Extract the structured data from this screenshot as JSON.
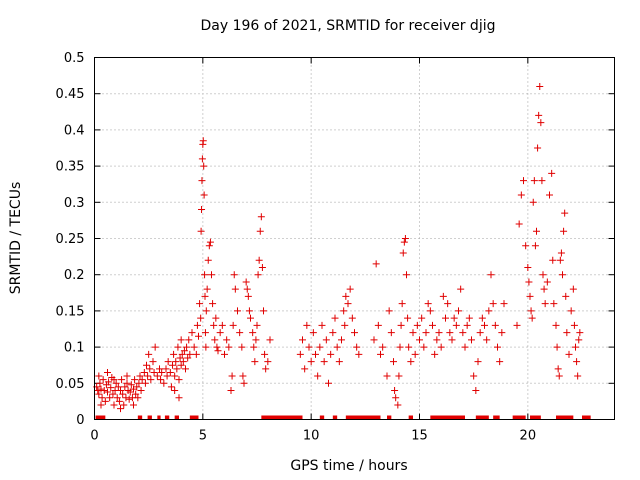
{
  "chart_data": {
    "type": "scatter",
    "title": "Day 196 of 2021, SRMTID for receiver djig",
    "xlabel": "GPS time / hours",
    "ylabel": "SRMTID / TECUs",
    "xlim": [
      0,
      24
    ],
    "ylim": [
      0,
      0.5
    ],
    "x_ticks": [
      0,
      5,
      10,
      15,
      20
    ],
    "x_tick_labels": [
      "0",
      "5",
      "10",
      "15",
      "20"
    ],
    "y_ticks": [
      0,
      0.05,
      0.1,
      0.15,
      0.2,
      0.25,
      0.3,
      0.35,
      0.4,
      0.45,
      0.5
    ],
    "y_tick_labels": [
      "0",
      "0.05",
      "0.1",
      "0.15",
      "0.2",
      "0.25",
      "0.3",
      "0.35",
      "0.4",
      "0.45",
      "0.5"
    ],
    "grid": true,
    "marker": "+",
    "color": "#e00000",
    "series": [
      {
        "name": "SRMTID",
        "points": [
          [
            0.1,
            0.045
          ],
          [
            0.15,
            0.04
          ],
          [
            0.2,
            0.035
          ],
          [
            0.25,
            0.05
          ],
          [
            0.3,
            0.042
          ],
          [
            0.35,
            0.03
          ],
          [
            0.4,
            0.055
          ],
          [
            0.45,
            0.04
          ],
          [
            0.5,
            0.025
          ],
          [
            0.55,
            0.048
          ],
          [
            0.6,
            0.038
          ],
          [
            0.65,
            0.052
          ],
          [
            0.7,
            0.03
          ],
          [
            0.75,
            0.044
          ],
          [
            0.8,
            0.058
          ],
          [
            0.85,
            0.035
          ],
          [
            0.9,
            0.02
          ],
          [
            0.95,
            0.04
          ],
          [
            1.0,
            0.05
          ],
          [
            1.05,
            0.03
          ],
          [
            1.1,
            0.045
          ],
          [
            1.15,
            0.025
          ],
          [
            1.2,
            0.04
          ],
          [
            1.25,
            0.055
          ],
          [
            1.3,
            0.035
          ],
          [
            1.35,
            0.02
          ],
          [
            1.4,
            0.045
          ],
          [
            1.45,
            0.03
          ],
          [
            1.5,
            0.05
          ],
          [
            1.55,
            0.04
          ],
          [
            1.6,
            0.028
          ],
          [
            1.65,
            0.038
          ],
          [
            1.7,
            0.048
          ],
          [
            1.75,
            0.03
          ],
          [
            1.8,
            0.042
          ],
          [
            1.85,
            0.055
          ],
          [
            1.9,
            0.035
          ],
          [
            1.95,
            0.045
          ],
          [
            2.0,
            0.03
          ],
          [
            2.05,
            0.05
          ],
          [
            0.2,
            0.06
          ],
          [
            0.3,
            0.02
          ],
          [
            0.6,
            0.065
          ],
          [
            0.9,
            0.055
          ],
          [
            1.2,
            0.015
          ],
          [
            1.5,
            0.06
          ],
          [
            1.8,
            0.02
          ],
          [
            2.1,
            0.06
          ],
          [
            2.15,
            0.04
          ],
          [
            2.2,
            0.055
          ],
          [
            2.3,
            0.065
          ],
          [
            2.35,
            0.05
          ],
          [
            2.4,
            0.075
          ],
          [
            2.45,
            0.06
          ],
          [
            2.5,
            0.09
          ],
          [
            2.55,
            0.07
          ],
          [
            2.6,
            0.055
          ],
          [
            2.7,
            0.08
          ],
          [
            2.75,
            0.065
          ],
          [
            2.8,
            0.1
          ],
          [
            2.9,
            0.06
          ],
          [
            3.0,
            0.07
          ],
          [
            3.05,
            0.055
          ],
          [
            3.1,
            0.065
          ],
          [
            3.2,
            0.05
          ],
          [
            3.3,
            0.07
          ],
          [
            3.35,
            0.06
          ],
          [
            3.4,
            0.08
          ],
          [
            3.5,
            0.065
          ],
          [
            3.55,
            0.045
          ],
          [
            3.6,
            0.075
          ],
          [
            3.65,
            0.09
          ],
          [
            3.7,
            0.06
          ],
          [
            3.75,
            0.08
          ],
          [
            3.8,
            0.07
          ],
          [
            3.85,
            0.1
          ],
          [
            3.9,
            0.055
          ],
          [
            3.95,
            0.085
          ],
          [
            4.0,
            0.075
          ],
          [
            4.05,
            0.09
          ],
          [
            4.1,
            0.08
          ],
          [
            4.15,
            0.095
          ],
          [
            4.2,
            0.07
          ],
          [
            4.25,
            0.1
          ],
          [
            4.3,
            0.085
          ],
          [
            4.35,
            0.11
          ],
          [
            4.4,
            0.09
          ],
          [
            3.7,
            0.04
          ],
          [
            3.9,
            0.03
          ],
          [
            4.0,
            0.11
          ],
          [
            4.5,
            0.12
          ],
          [
            4.6,
            0.1
          ],
          [
            4.7,
            0.09
          ],
          [
            4.75,
            0.13
          ],
          [
            4.8,
            0.115
          ],
          [
            4.85,
            0.16
          ],
          [
            4.9,
            0.14
          ],
          [
            4.92,
            0.26
          ],
          [
            4.94,
            0.29
          ],
          [
            4.96,
            0.33
          ],
          [
            4.98,
            0.36
          ],
          [
            5.0,
            0.38
          ],
          [
            5.02,
            0.385
          ],
          [
            5.04,
            0.35
          ],
          [
            5.06,
            0.31
          ],
          [
            5.08,
            0.2
          ],
          [
            5.1,
            0.17
          ],
          [
            5.12,
            0.12
          ],
          [
            5.14,
            0.1
          ],
          [
            5.16,
            0.15
          ],
          [
            5.2,
            0.18
          ],
          [
            5.25,
            0.22
          ],
          [
            5.3,
            0.24
          ],
          [
            5.35,
            0.245
          ],
          [
            5.4,
            0.2
          ],
          [
            5.45,
            0.16
          ],
          [
            5.5,
            0.13
          ],
          [
            5.55,
            0.11
          ],
          [
            5.6,
            0.14
          ],
          [
            5.65,
            0.1
          ],
          [
            5.7,
            0.095
          ],
          [
            5.8,
            0.12
          ],
          [
            5.9,
            0.13
          ],
          [
            6.0,
            0.09
          ],
          [
            6.1,
            0.11
          ],
          [
            6.2,
            0.1
          ],
          [
            6.3,
            0.04
          ],
          [
            6.35,
            0.06
          ],
          [
            6.4,
            0.13
          ],
          [
            6.45,
            0.2
          ],
          [
            6.5,
            0.18
          ],
          [
            6.6,
            0.15
          ],
          [
            6.7,
            0.12
          ],
          [
            6.8,
            0.1
          ],
          [
            6.85,
            0.06
          ],
          [
            6.9,
            0.05
          ],
          [
            7.0,
            0.19
          ],
          [
            7.05,
            0.18
          ],
          [
            7.1,
            0.17
          ],
          [
            7.15,
            0.15
          ],
          [
            7.2,
            0.14
          ],
          [
            7.3,
            0.12
          ],
          [
            7.35,
            0.1
          ],
          [
            7.4,
            0.08
          ],
          [
            7.45,
            0.11
          ],
          [
            7.5,
            0.13
          ],
          [
            7.55,
            0.2
          ],
          [
            7.6,
            0.22
          ],
          [
            7.65,
            0.26
          ],
          [
            7.7,
            0.28
          ],
          [
            7.75,
            0.21
          ],
          [
            7.8,
            0.15
          ],
          [
            7.85,
            0.09
          ],
          [
            7.9,
            0.07
          ],
          [
            8.0,
            0.08
          ],
          [
            8.1,
            0.11
          ],
          [
            9.5,
            0.09
          ],
          [
            9.6,
            0.11
          ],
          [
            9.7,
            0.07
          ],
          [
            9.8,
            0.13
          ],
          [
            9.9,
            0.1
          ],
          [
            10.0,
            0.08
          ],
          [
            10.1,
            0.12
          ],
          [
            10.2,
            0.09
          ],
          [
            10.3,
            0.06
          ],
          [
            10.4,
            0.1
          ],
          [
            10.5,
            0.13
          ],
          [
            10.6,
            0.08
          ],
          [
            10.7,
            0.11
          ],
          [
            10.8,
            0.05
          ],
          [
            10.9,
            0.09
          ],
          [
            11.0,
            0.12
          ],
          [
            11.1,
            0.14
          ],
          [
            11.2,
            0.1
          ],
          [
            11.3,
            0.08
          ],
          [
            11.4,
            0.11
          ],
          [
            11.5,
            0.15
          ],
          [
            11.55,
            0.13
          ],
          [
            11.6,
            0.17
          ],
          [
            11.7,
            0.16
          ],
          [
            11.8,
            0.18
          ],
          [
            11.9,
            0.14
          ],
          [
            12.0,
            0.12
          ],
          [
            12.1,
            0.1
          ],
          [
            12.2,
            0.09
          ],
          [
            12.9,
            0.11
          ],
          [
            13.0,
            0.215
          ],
          [
            13.1,
            0.13
          ],
          [
            13.2,
            0.09
          ],
          [
            13.3,
            0.1
          ],
          [
            13.5,
            0.06
          ],
          [
            13.6,
            0.15
          ],
          [
            13.7,
            0.12
          ],
          [
            13.8,
            0.08
          ],
          [
            13.85,
            0.04
          ],
          [
            13.9,
            0.03
          ],
          [
            14.0,
            0.02
          ],
          [
            14.05,
            0.06
          ],
          [
            14.1,
            0.1
          ],
          [
            14.15,
            0.13
          ],
          [
            14.2,
            0.16
          ],
          [
            14.25,
            0.23
          ],
          [
            14.3,
            0.245
          ],
          [
            14.35,
            0.25
          ],
          [
            14.4,
            0.2
          ],
          [
            14.45,
            0.14
          ],
          [
            14.5,
            0.1
          ],
          [
            14.6,
            0.08
          ],
          [
            14.7,
            0.12
          ],
          [
            14.8,
            0.09
          ],
          [
            14.9,
            0.13
          ],
          [
            15.0,
            0.11
          ],
          [
            15.1,
            0.14
          ],
          [
            15.2,
            0.1
          ],
          [
            15.3,
            0.12
          ],
          [
            15.4,
            0.16
          ],
          [
            15.5,
            0.15
          ],
          [
            15.6,
            0.13
          ],
          [
            15.7,
            0.09
          ],
          [
            15.8,
            0.11
          ],
          [
            15.9,
            0.12
          ],
          [
            16.0,
            0.1
          ],
          [
            16.1,
            0.17
          ],
          [
            16.2,
            0.14
          ],
          [
            16.3,
            0.16
          ],
          [
            16.4,
            0.12
          ],
          [
            16.5,
            0.11
          ],
          [
            16.6,
            0.14
          ],
          [
            16.7,
            0.13
          ],
          [
            16.8,
            0.15
          ],
          [
            16.9,
            0.18
          ],
          [
            17.0,
            0.12
          ],
          [
            17.1,
            0.1
          ],
          [
            17.2,
            0.13
          ],
          [
            17.3,
            0.14
          ],
          [
            17.4,
            0.11
          ],
          [
            17.5,
            0.06
          ],
          [
            17.6,
            0.04
          ],
          [
            17.7,
            0.08
          ],
          [
            17.8,
            0.12
          ],
          [
            17.9,
            0.14
          ],
          [
            18.0,
            0.13
          ],
          [
            18.1,
            0.11
          ],
          [
            18.2,
            0.15
          ],
          [
            18.3,
            0.2
          ],
          [
            18.4,
            0.16
          ],
          [
            18.5,
            0.13
          ],
          [
            18.6,
            0.1
          ],
          [
            18.7,
            0.08
          ],
          [
            18.8,
            0.12
          ],
          [
            18.9,
            0.16
          ],
          [
            19.5,
            0.13
          ],
          [
            19.6,
            0.27
          ],
          [
            19.7,
            0.31
          ],
          [
            19.8,
            0.33
          ],
          [
            19.9,
            0.24
          ],
          [
            20.0,
            0.21
          ],
          [
            20.05,
            0.19
          ],
          [
            20.1,
            0.17
          ],
          [
            20.15,
            0.15
          ],
          [
            20.2,
            0.14
          ],
          [
            20.25,
            0.3
          ],
          [
            20.3,
            0.33
          ],
          [
            20.35,
            0.24
          ],
          [
            20.4,
            0.26
          ],
          [
            20.45,
            0.375
          ],
          [
            20.5,
            0.42
          ],
          [
            20.55,
            0.46
          ],
          [
            20.6,
            0.41
          ],
          [
            20.65,
            0.33
          ],
          [
            20.7,
            0.2
          ],
          [
            20.75,
            0.18
          ],
          [
            20.8,
            0.16
          ],
          [
            20.9,
            0.19
          ],
          [
            21.0,
            0.31
          ],
          [
            21.1,
            0.34
          ],
          [
            21.15,
            0.22
          ],
          [
            21.2,
            0.16
          ],
          [
            21.3,
            0.13
          ],
          [
            21.35,
            0.1
          ],
          [
            21.4,
            0.07
          ],
          [
            21.45,
            0.06
          ],
          [
            21.5,
            0.22
          ],
          [
            21.55,
            0.23
          ],
          [
            21.6,
            0.2
          ],
          [
            21.65,
            0.26
          ],
          [
            21.7,
            0.285
          ],
          [
            21.75,
            0.17
          ],
          [
            21.8,
            0.12
          ],
          [
            21.9,
            0.09
          ],
          [
            22.0,
            0.15
          ],
          [
            22.1,
            0.18
          ],
          [
            22.15,
            0.13
          ],
          [
            22.2,
            0.1
          ],
          [
            22.25,
            0.08
          ],
          [
            22.3,
            0.06
          ],
          [
            22.35,
            0.11
          ],
          [
            22.4,
            0.12
          ]
        ]
      }
    ],
    "baseline_markers": [
      [
        0.05,
        0.5
      ],
      [
        2.0,
        2.2
      ],
      [
        2.45,
        2.65
      ],
      [
        2.9,
        3.05
      ],
      [
        3.25,
        3.45
      ],
      [
        3.7,
        3.9
      ],
      [
        4.4,
        4.8
      ],
      [
        7.7,
        9.6
      ],
      [
        10.4,
        10.6
      ],
      [
        11.0,
        11.2
      ],
      [
        11.6,
        13.2
      ],
      [
        13.5,
        13.7
      ],
      [
        14.5,
        14.7
      ],
      [
        15.5,
        17.1
      ],
      [
        17.6,
        18.2
      ],
      [
        18.4,
        18.7
      ],
      [
        19.3,
        19.9
      ],
      [
        20.1,
        20.6
      ],
      [
        21.3,
        22.1
      ],
      [
        22.5,
        22.9
      ]
    ]
  }
}
